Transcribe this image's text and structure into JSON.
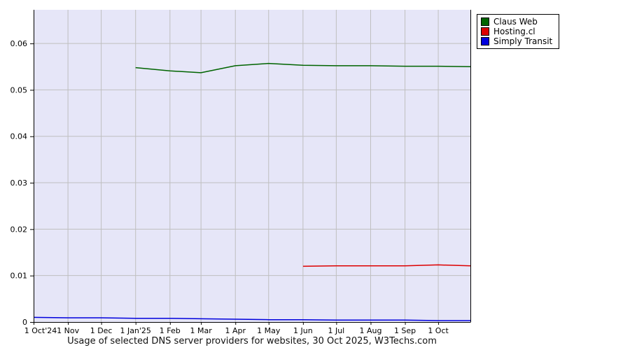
{
  "chart_data": {
    "type": "line",
    "title": "Usage of selected DNS server providers for websites, 30 Oct 2025, W3Techs.com",
    "x_unit": "days since 1 Oct 2024",
    "xlim": [
      0,
      394
    ],
    "ylim": [
      0,
      0.06725
    ],
    "grid": true,
    "legend_position": "top-right",
    "colors": {
      "plot_background": "#e6e6f8",
      "grid": "#bfbfbf",
      "axis": "#000000",
      "text": "#000000"
    },
    "x_ticks": [
      {
        "label": "1 Oct'24",
        "day": 0,
        "dx": 10
      },
      {
        "label": "1 Nov",
        "day": 31
      },
      {
        "label": "1 Dec",
        "day": 61
      },
      {
        "label": "1 Jan'25",
        "day": 92
      },
      {
        "label": "1 Feb",
        "day": 123
      },
      {
        "label": "1 Mar",
        "day": 151
      },
      {
        "label": "1 Apr",
        "day": 182
      },
      {
        "label": "1 May",
        "day": 212
      },
      {
        "label": "1 Jun",
        "day": 243
      },
      {
        "label": "1 Jul",
        "day": 273
      },
      {
        "label": "1 Aug",
        "day": 304
      },
      {
        "label": "1 Sep",
        "day": 335
      },
      {
        "label": "1 Oct",
        "day": 365
      }
    ],
    "y_ticks": [
      {
        "label": "0",
        "value": 0
      },
      {
        "label": "0.01",
        "value": 0.01
      },
      {
        "label": "0.02",
        "value": 0.02
      },
      {
        "label": "0.03",
        "value": 0.03
      },
      {
        "label": "0.04",
        "value": 0.04
      },
      {
        "label": "0.05",
        "value": 0.05
      },
      {
        "label": "0.06",
        "value": 0.06
      }
    ],
    "series": [
      {
        "name": "Claus Web",
        "color": "#006400",
        "points": [
          [
            92,
            0.0548
          ],
          [
            123,
            0.0541
          ],
          [
            151,
            0.0537
          ],
          [
            182,
            0.0552
          ],
          [
            212,
            0.0557
          ],
          [
            243,
            0.0553
          ],
          [
            273,
            0.0552
          ],
          [
            304,
            0.0552
          ],
          [
            335,
            0.0551
          ],
          [
            365,
            0.0551
          ],
          [
            394,
            0.055
          ]
        ]
      },
      {
        "name": "Hosting.cl",
        "color": "#dd0000",
        "points": [
          [
            243,
            0.012
          ],
          [
            273,
            0.0121
          ],
          [
            304,
            0.0121
          ],
          [
            335,
            0.0121
          ],
          [
            365,
            0.0123
          ],
          [
            394,
            0.0121
          ]
        ]
      },
      {
        "name": "Simply Transit",
        "color": "#0000dd",
        "points": [
          [
            0,
            0.001
          ],
          [
            31,
            0.0009
          ],
          [
            61,
            0.0009
          ],
          [
            92,
            0.0008
          ],
          [
            123,
            0.0008
          ],
          [
            151,
            0.0007
          ],
          [
            182,
            0.0006
          ],
          [
            212,
            0.0005
          ],
          [
            243,
            0.0005
          ],
          [
            273,
            0.0004
          ],
          [
            304,
            0.0004
          ],
          [
            335,
            0.0004
          ],
          [
            365,
            0.0003
          ],
          [
            394,
            0.0003
          ]
        ]
      }
    ]
  }
}
